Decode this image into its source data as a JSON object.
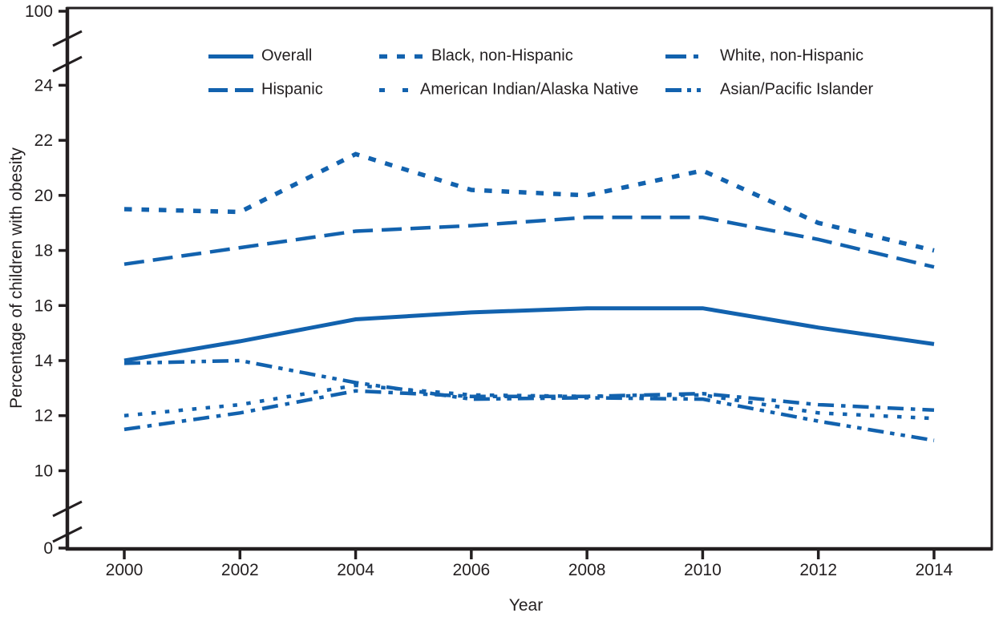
{
  "figure": {
    "accent_color": "#1262ae",
    "axis_color": "#231f20",
    "y_axis": {
      "title": "Percentage of children with obesity",
      "tick_values": [
        0,
        10,
        12,
        14,
        16,
        18,
        20,
        22,
        24,
        100
      ],
      "tick_labels": [
        "0",
        "10",
        "12",
        "14",
        "16",
        "18",
        "20",
        "22",
        "24",
        "100"
      ],
      "broken_axis_breaks": [
        "between 0 and 10",
        "between 24 and 100"
      ]
    },
    "x_axis": {
      "title": "Year",
      "tick_labels": [
        "2000",
        "2002",
        "2004",
        "2006",
        "2008",
        "2010",
        "2012",
        "2014"
      ]
    },
    "legend": {
      "items": [
        {
          "label": "Overall",
          "style": "solid",
          "col": 0,
          "row": 0
        },
        {
          "label": "Hispanic",
          "style": "dash",
          "col": 0,
          "row": 1
        },
        {
          "label": "Black, non-Hispanic",
          "style": "dot",
          "col": 1,
          "row": 0
        },
        {
          "label": "American Indian/Alaska Native",
          "style": "sparse-dot",
          "col": 1,
          "row": 1
        },
        {
          "label": "White, non-Hispanic",
          "style": "dash-dot",
          "col": 2,
          "row": 0
        },
        {
          "label": "Asian/Pacific Islander",
          "style": "dash-dot-dot",
          "col": 2,
          "row": 1
        }
      ]
    }
  },
  "chart_data": {
    "type": "line",
    "title": "",
    "xlabel": "Year",
    "ylabel": "Percentage of children with obesity",
    "x": [
      2000,
      2002,
      2004,
      2006,
      2008,
      2010,
      2012,
      2014
    ],
    "ylim": [
      0,
      100
    ],
    "y_linear_segment": [
      10,
      24
    ],
    "grid": false,
    "legend_position": "top",
    "line_color": "#1262ae",
    "series": [
      {
        "name": "Overall",
        "slug": "overall",
        "style": "solid",
        "values": [
          14.0,
          14.7,
          15.5,
          15.75,
          15.9,
          15.9,
          15.2,
          14.6
        ]
      },
      {
        "name": "Black, non-Hispanic",
        "slug": "black-non-hispanic",
        "style": "dot",
        "values": [
          19.5,
          19.4,
          21.5,
          20.2,
          20.0,
          20.9,
          19.0,
          18.0
        ]
      },
      {
        "name": "White, non-Hispanic",
        "slug": "white-non-hispanic",
        "style": "dash-dot",
        "values": [
          11.5,
          12.1,
          12.9,
          12.7,
          12.7,
          12.8,
          12.4,
          12.2
        ]
      },
      {
        "name": "Hispanic",
        "slug": "hispanic",
        "style": "dash",
        "values": [
          17.5,
          18.1,
          18.7,
          18.9,
          19.2,
          19.2,
          18.4,
          17.4
        ]
      },
      {
        "name": "American Indian/Alaska Native",
        "slug": "american-indian-alaska-native",
        "style": "sparse-dot",
        "values": [
          12.0,
          12.4,
          13.1,
          12.75,
          12.7,
          12.75,
          12.1,
          11.9
        ]
      },
      {
        "name": "Asian/Pacific Islander",
        "slug": "asian-pacific-islander",
        "style": "dash-dot-dot",
        "values": [
          13.9,
          14.0,
          13.2,
          12.6,
          12.65,
          12.6,
          11.8,
          11.1
        ]
      }
    ]
  }
}
